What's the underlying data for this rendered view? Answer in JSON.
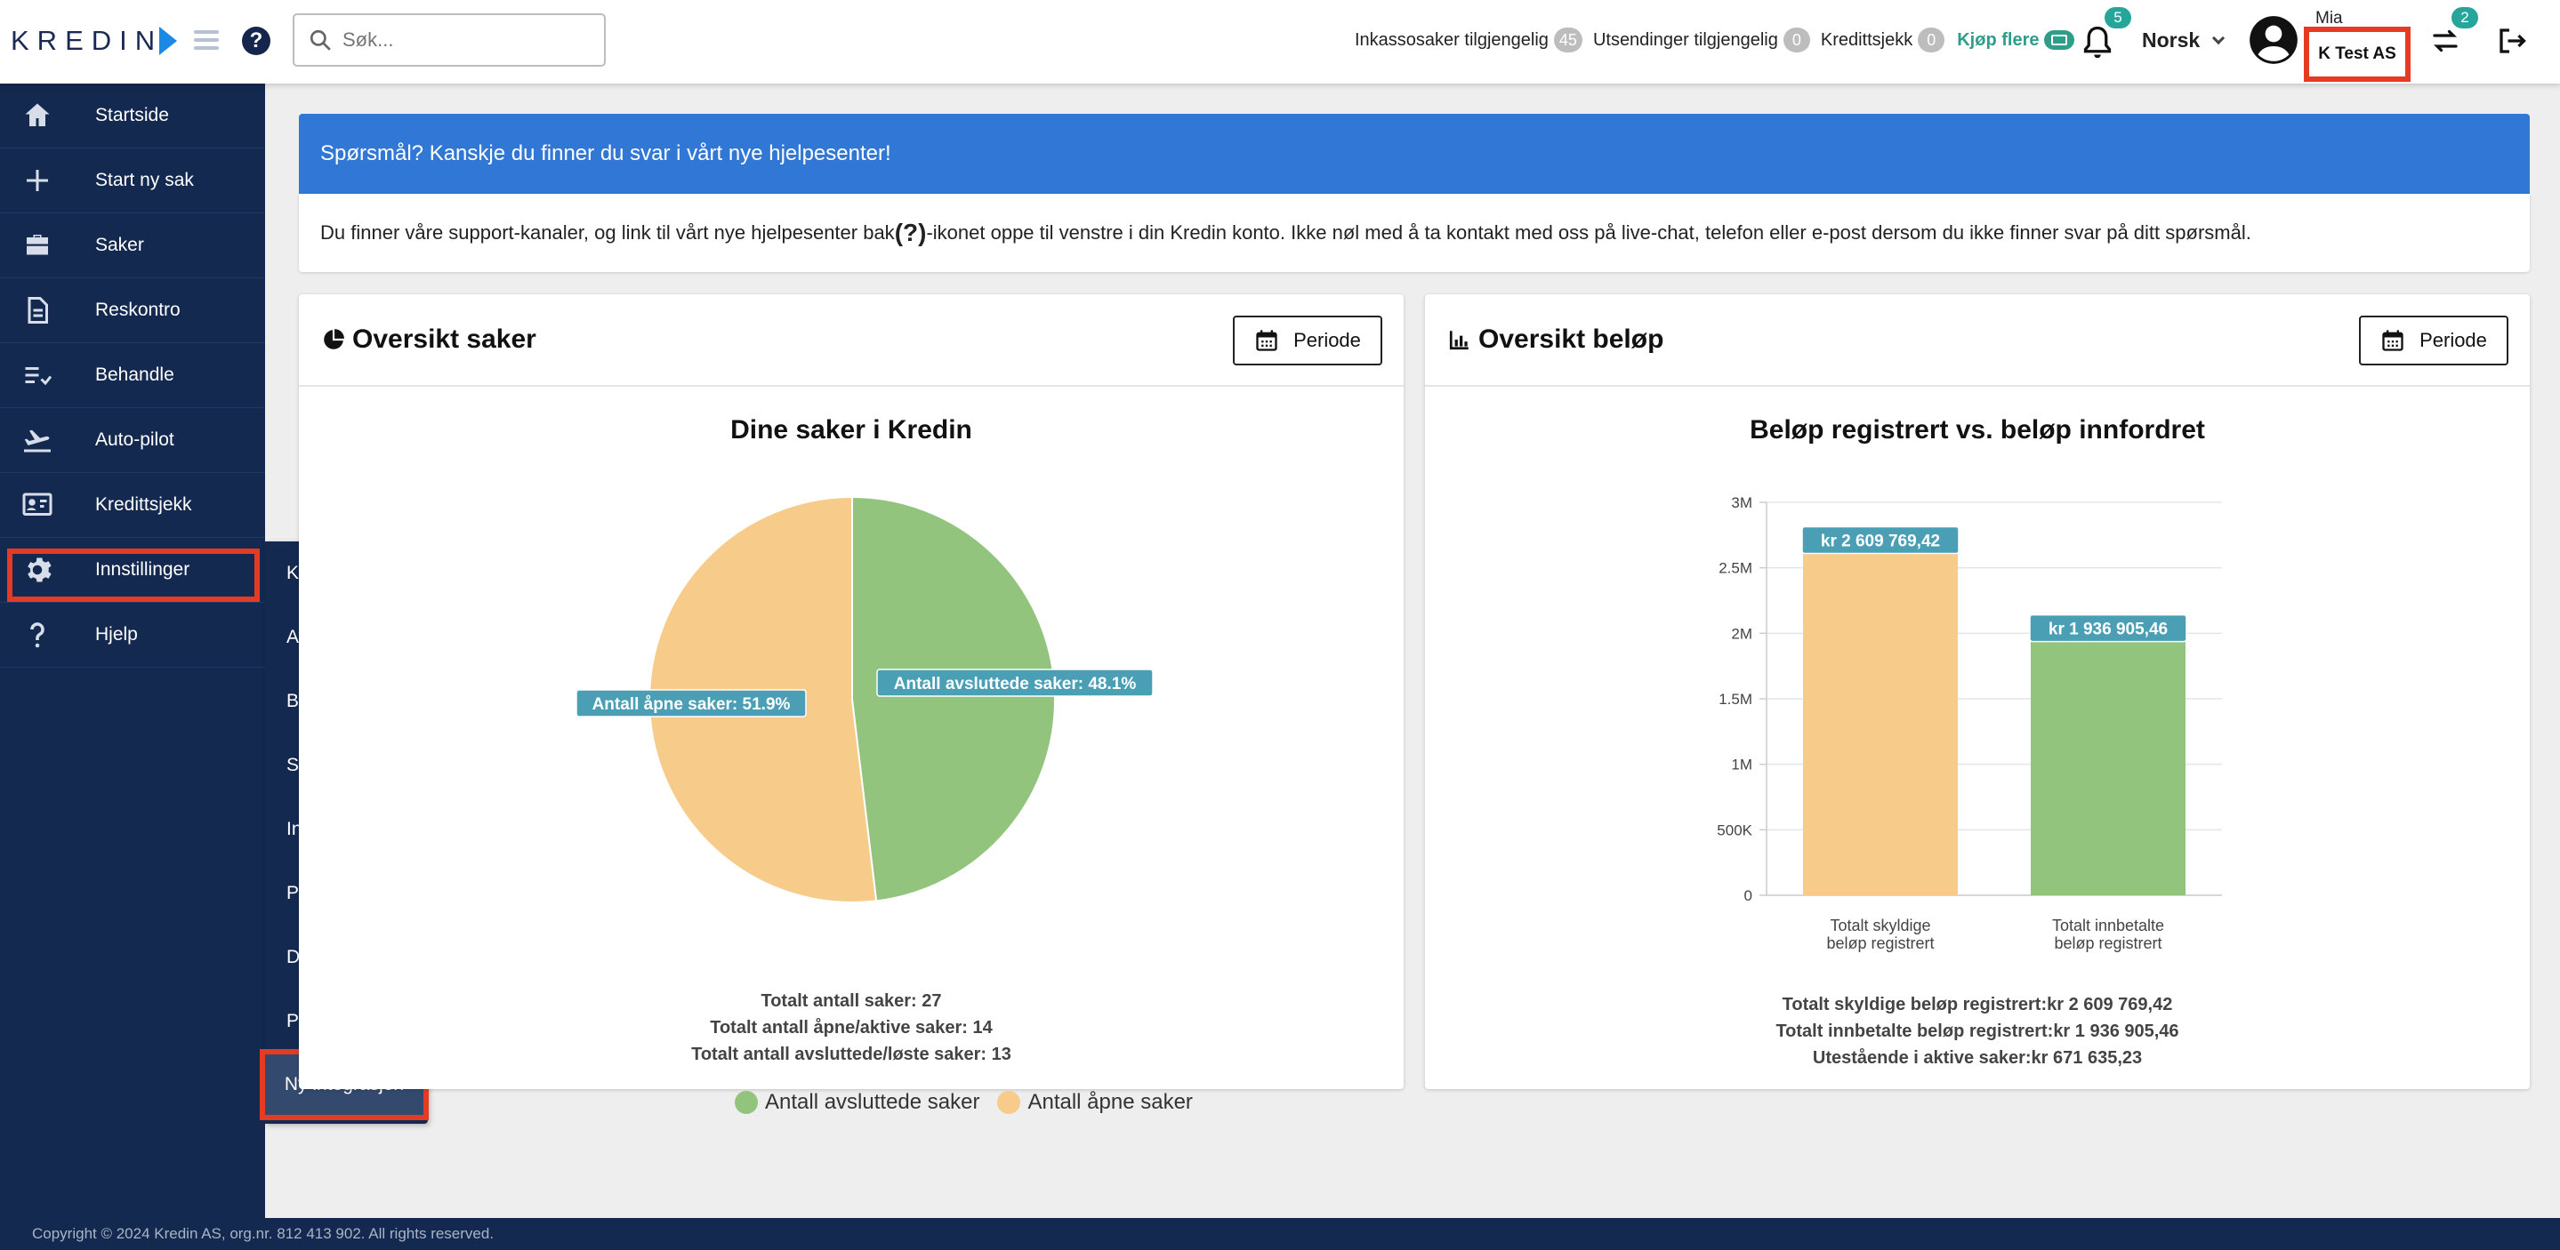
{
  "app": {
    "logo_text": "KREDIN"
  },
  "header": {
    "search_placeholder": "Søk...",
    "stats": [
      {
        "label": "Inkassosaker tilgjengelig",
        "count": "45"
      },
      {
        "label": "Utsendinger tilgjengelig",
        "count": "0"
      },
      {
        "label": "Kredittsjekk",
        "count": "0"
      }
    ],
    "buy_more": "Kjøp flere",
    "notifications_count": "5",
    "language": "Norsk",
    "user_name": "Mia",
    "company": "K Test AS",
    "switch_count": "2"
  },
  "sidebar": {
    "items": [
      {
        "label": "Startside",
        "icon": "home-icon"
      },
      {
        "label": "Start ny sak",
        "icon": "plus-icon"
      },
      {
        "label": "Saker",
        "icon": "briefcase-icon"
      },
      {
        "label": "Reskontro",
        "icon": "document-icon"
      },
      {
        "label": "Behandle",
        "icon": "checklist-icon"
      },
      {
        "label": "Auto-pilot",
        "icon": "airplane-icon"
      },
      {
        "label": "Kredittsjekk",
        "icon": "id-card-icon"
      },
      {
        "label": "Innstillinger",
        "icon": "gear-icon"
      },
      {
        "label": "Hjelp",
        "icon": "question-icon"
      }
    ]
  },
  "submenu": {
    "items": [
      "Konto",
      "Avtale",
      "Brukere",
      "System",
      "Integrasjon",
      "Privilegier",
      "Dokumenter",
      "Påminnelser",
      "Ny integrasjon"
    ]
  },
  "info": {
    "heading": "Spørsmål? Kanskje du finner du svar i vårt nye hjelpesenter!",
    "body_before": "Du finner våre support-kanaler, og link til vårt nye hjelpesenter bak ",
    "body_symbol": "(?)",
    "body_after": "-ikonet oppe til venstre i din Kredin konto. Ikke nøl med å ta kontakt med oss på live-chat, telefon eller e-post dersom du ikke finner svar på ditt spørsmål."
  },
  "cards": {
    "left": {
      "title": "Oversikt saker",
      "button": "Periode"
    },
    "right": {
      "title": "Oversikt beløp",
      "button": "Periode"
    }
  },
  "chart_data": [
    {
      "type": "pie",
      "title": "Dine saker i Kredin",
      "categories": [
        "Antall avsluttede saker",
        "Antall åpne saker"
      ],
      "values": [
        48.1,
        51.9
      ],
      "labels": [
        "Antall avsluttede saker: 48.1%",
        "Antall åpne saker: 51.9%"
      ],
      "colors": [
        "#93c47d",
        "#f7cb8a"
      ],
      "legend": "bottom",
      "totals": [
        "Totalt antall saker: 27",
        "Totalt antall åpne/aktive saker: 14",
        "Totalt antall avsluttede/løste saker: 13"
      ]
    },
    {
      "type": "bar",
      "title": "Beløp registrert vs. beløp innfordret",
      "categories": [
        "Totalt skyldige beløp registrert",
        "Totalt innbetalte beløp registrert"
      ],
      "category_lines": [
        [
          "Totalt skyldige",
          "beløp registrert"
        ],
        [
          "Totalt innbetalte",
          "beløp registrert"
        ]
      ],
      "values": [
        2609769.42,
        1936905.46
      ],
      "data_labels": [
        "kr 2 609 769,42",
        "kr 1 936 905,46"
      ],
      "colors": [
        "#f7cb8a",
        "#93c47d"
      ],
      "ylim": [
        0,
        3000000
      ],
      "yticks": [
        0,
        500000,
        1000000,
        1500000,
        2000000,
        2500000,
        3000000
      ],
      "ytick_labels": [
        "0",
        "500K",
        "1M",
        "1.5M",
        "2M",
        "2.5M",
        "3M"
      ],
      "grid": true,
      "totals": [
        "Totalt skyldige beløp registrert:kr 2 609 769,42",
        "Totalt innbetalte beløp registrert:kr 1 936 905,46",
        "Utestående i aktive saker:kr 671 635,23"
      ]
    }
  ],
  "footer": {
    "text": "Copyright © 2024 Kredin AS, org.nr. 812 413 902. All rights reserved."
  }
}
